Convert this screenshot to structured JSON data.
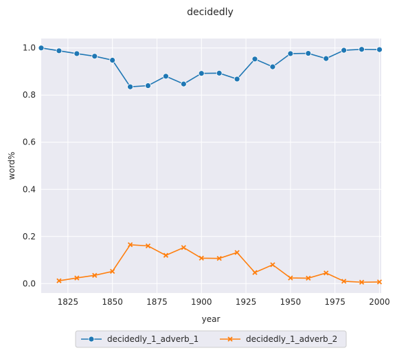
{
  "chart_data": {
    "type": "line",
    "title": "decidedly",
    "xlabel": "year",
    "ylabel": "word%",
    "xlim": [
      1810,
      2001
    ],
    "ylim": [
      -0.04,
      1.04
    ],
    "x_ticks": [
      1825,
      1850,
      1875,
      1900,
      1925,
      1950,
      1975,
      2000
    ],
    "y_ticks": [
      0.0,
      0.2,
      0.4,
      0.6,
      0.8,
      1.0
    ],
    "x_tick_labels": [
      "1825",
      "1850",
      "1875",
      "1900",
      "1925",
      "1950",
      "1975",
      "2000"
    ],
    "y_tick_labels": [
      "0.0",
      "0.2",
      "0.4",
      "0.6",
      "0.8",
      "1.0"
    ],
    "grid": true,
    "legend_placement": "bottom-center",
    "series": [
      {
        "name": "decidedly_1_adverb_1",
        "color": "#1f77b4",
        "marker": "circle",
        "x": [
          1810,
          1820,
          1830,
          1840,
          1850,
          1860,
          1870,
          1880,
          1890,
          1900,
          1910,
          1920,
          1930,
          1940,
          1950,
          1960,
          1970,
          1980,
          1990,
          2000
        ],
        "y": [
          1.0,
          0.988,
          0.976,
          0.965,
          0.948,
          0.835,
          0.84,
          0.88,
          0.847,
          0.892,
          0.893,
          0.868,
          0.953,
          0.92,
          0.976,
          0.977,
          0.955,
          0.99,
          0.994,
          0.993
        ]
      },
      {
        "name": "decidedly_1_adverb_2",
        "color": "#ff7f0e",
        "marker": "x",
        "x": [
          1820,
          1830,
          1840,
          1850,
          1860,
          1870,
          1880,
          1890,
          1900,
          1910,
          1920,
          1930,
          1940,
          1950,
          1960,
          1970,
          1980,
          1990,
          2000
        ],
        "y": [
          0.012,
          0.024,
          0.035,
          0.052,
          0.165,
          0.16,
          0.12,
          0.153,
          0.108,
          0.107,
          0.132,
          0.047,
          0.08,
          0.024,
          0.023,
          0.045,
          0.01,
          0.006,
          0.007
        ]
      }
    ]
  }
}
